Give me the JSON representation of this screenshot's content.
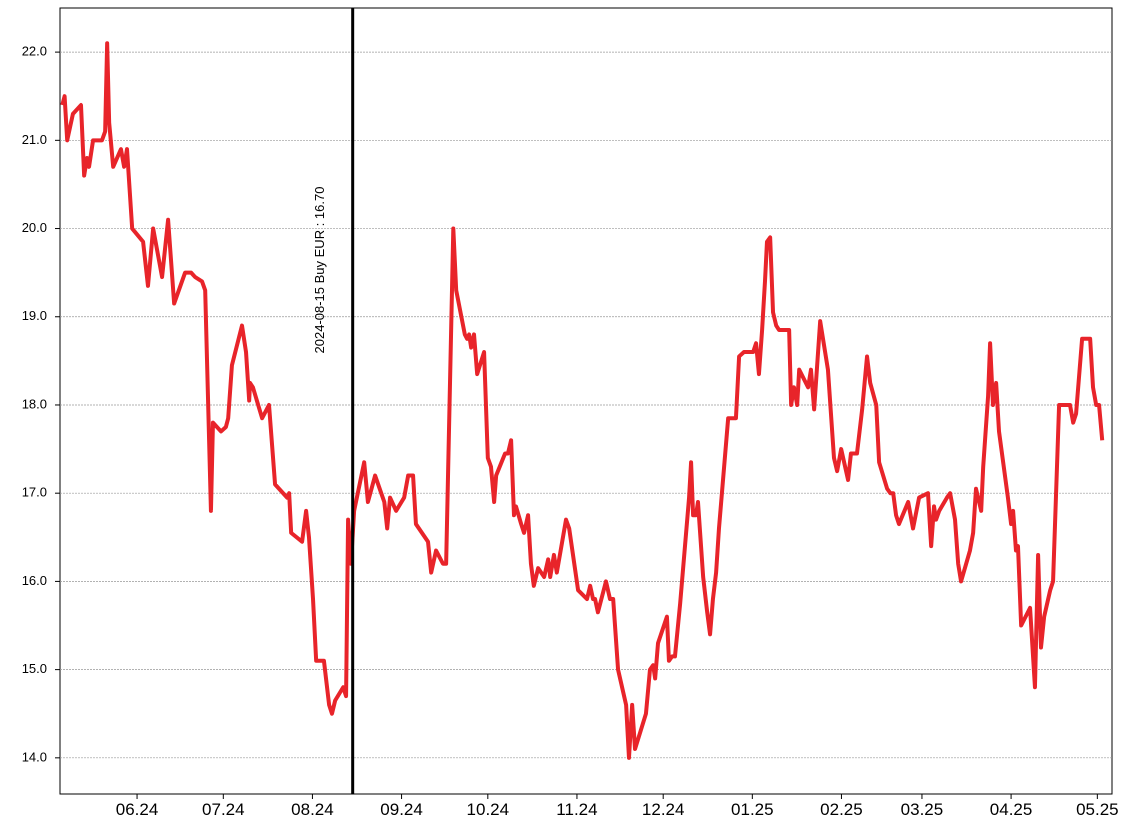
{
  "chart_data": {
    "type": "line",
    "x": [
      -26,
      -25.2,
      -24.3,
      -22.3,
      -19.5,
      -18.4,
      -17.4,
      -16.7,
      -15.3,
      -12.2,
      -11.1,
      -10.4,
      -9.7,
      -8.3,
      -5.6,
      -4.5,
      -3.5,
      -1.7,
      2.1,
      3.8,
      5.6,
      8.7,
      10.8,
      12.9,
      16.7,
      18.8,
      20.2,
      22.6,
      23.7,
      25.7,
      26.4,
      29.2,
      30.9,
      31.7,
      33,
      36.5,
      37.9,
      39,
      39.3,
      40.3,
      43.5,
      45.9,
      48,
      52.2,
      52.9,
      53.6,
      57.4,
      58.8,
      59.8,
      61.2,
      62.3,
      65,
      66.8,
      67.8,
      68.9,
      71.7,
      72.7,
      73.4,
      74.4,
      75.5,
      79,
      80.3,
      82.8,
      86,
      87,
      88,
      90.1,
      92.9,
      94.3,
      96,
      97,
      101.2,
      102.3,
      104,
      106.4,
      107.5,
      110,
      111,
      114,
      114.8,
      115.5,
      116.2,
      117.2,
      118.3,
      120.7,
      122,
      123.1,
      124.2,
      124.9,
      128,
      129,
      130.1,
      131.1,
      131.8,
      133.6,
      134.6,
      136,
      137,
      138,
      139.5,
      141.6,
      143,
      143.7,
      145,
      146,
      149.2,
      150.3,
      153.4,
      156.5,
      157.6,
      158.6,
      159.3,
      160.3,
      163.1,
      164.5,
      165.6,
      167.3,
      170.1,
      171.1,
      172.2,
      173.2,
      177,
      178.4,
      179.5,
      180.2,
      181.2,
      184.3,
      185,
      186.1,
      187.1,
      188.9,
      192,
      192.7,
      193.4,
      194.4,
      195.1,
      196.9,
      198.3,
      199.3,
      200.3,
      201.4,
      202.4,
      205.6,
      208.3,
      209.4,
      211.1,
      212.5,
      214.3,
      215.3,
      216.3,
      217.4,
      218.4,
      219.1,
      220.2,
      221.2,
      222.3,
      223.3,
      226.8,
      227.5,
      228.5,
      229.6,
      230.3,
      233.4,
      234.4,
      235.5,
      237.6,
      240.3,
      242.4,
      243.5,
      244.9,
      247.3,
      248.3,
      250.4,
      252.2,
      253.9,
      255,
      257.1,
      258.1,
      260.9,
      262,
      263,
      264,
      265,
      268.2,
      269.9,
      272,
      275.1,
      276.2,
      277.2,
      277.9,
      279,
      281.7,
      282.8,
      284.5,
      285.6,
      286.6,
      289.7,
      290.8,
      291.8,
      293.6,
      294.3,
      296,
      296.7,
      297.7,
      298.8,
      299.8,
      302.9,
      304,
      304.7,
      305.7,
      306.4,
      307.5,
      310.6,
      312.3,
      313.4,
      314.4,
      315.5,
      317.6,
      318.6,
      320.7,
      324.5,
      325.6,
      326.6,
      328.7,
      331.5,
      332.5,
      333.6,
      334.6,
      335.7
    ],
    "values": [
      21.4,
      21.5,
      21.0,
      21.3,
      21.4,
      20.6,
      20.8,
      20.7,
      21.0,
      21.0,
      21.1,
      22.1,
      21.2,
      20.7,
      20.9,
      20.7,
      20.9,
      20.0,
      19.85,
      19.35,
      20.0,
      19.45,
      20.1,
      19.15,
      19.5,
      19.5,
      19.45,
      19.4,
      19.3,
      16.8,
      17.8,
      17.7,
      17.75,
      17.85,
      18.45,
      18.9,
      18.6,
      18.05,
      18.25,
      18.2,
      17.85,
      18.0,
      17.1,
      16.95,
      17.0,
      16.55,
      16.45,
      16.8,
      16.5,
      15.8,
      15.1,
      15.1,
      14.6,
      14.5,
      14.65,
      14.8,
      14.7,
      16.7,
      16.2,
      16.8,
      17.35,
      16.9,
      17.2,
      16.9,
      16.6,
      16.95,
      16.8,
      16.95,
      17.2,
      17.2,
      16.65,
      16.45,
      16.1,
      16.35,
      16.2,
      16.2,
      20.0,
      19.3,
      18.8,
      18.75,
      18.8,
      18.65,
      18.8,
      18.35,
      18.6,
      17.4,
      17.3,
      16.9,
      17.2,
      17.45,
      17.45,
      17.6,
      16.75,
      16.85,
      16.65,
      16.55,
      16.75,
      16.2,
      15.95,
      16.15,
      16.05,
      16.25,
      16.05,
      16.3,
      16.1,
      16.7,
      16.6,
      15.9,
      15.8,
      15.95,
      15.8,
      15.8,
      15.65,
      16.0,
      15.8,
      15.8,
      15.0,
      14.6,
      14.0,
      14.6,
      14.1,
      14.5,
      15.0,
      15.05,
      14.9,
      15.3,
      15.6,
      15.1,
      15.15,
      15.15,
      15.75,
      16.95,
      17.35,
      16.75,
      16.75,
      16.9,
      16.05,
      15.65,
      15.4,
      15.8,
      16.1,
      16.6,
      17.85,
      17.85,
      18.55,
      18.6,
      18.6,
      18.6,
      18.7,
      18.35,
      18.85,
      19.4,
      19.85,
      19.9,
      19.05,
      18.9,
      18.85,
      18.85,
      18.0,
      18.2,
      18.0,
      18.4,
      18.2,
      18.4,
      17.95,
      18.95,
      18.4,
      17.4,
      17.25,
      17.5,
      17.15,
      17.45,
      17.45,
      17.95,
      18.55,
      18.25,
      18.0,
      17.35,
      17.05,
      17.0,
      17.0,
      16.75,
      16.65,
      16.9,
      16.6,
      16.95,
      17.0,
      16.4,
      16.85,
      16.7,
      16.8,
      16.95,
      17.0,
      16.7,
      16.2,
      16.0,
      16.35,
      16.55,
      17.05,
      16.8,
      17.3,
      18.1,
      18.7,
      18.0,
      18.25,
      17.7,
      16.95,
      16.65,
      16.8,
      16.35,
      16.4,
      15.5,
      15.7,
      14.8,
      16.3,
      15.25,
      15.6,
      15.9,
      16.0,
      18.0,
      18.0,
      17.8,
      17.9,
      18.75,
      18.75,
      18.2,
      18.0,
      18.0,
      17.6
    ],
    "color": "#e8242a",
    "xlim": [
      -26.8,
      339.1
    ],
    "xticks": [
      {
        "value": 0,
        "label": "06.24"
      },
      {
        "value": 30,
        "label": "07.24"
      },
      {
        "value": 61,
        "label": "08.24"
      },
      {
        "value": 92,
        "label": "09.24"
      },
      {
        "value": 122,
        "label": "10.24"
      },
      {
        "value": 153,
        "label": "11.24"
      },
      {
        "value": 183,
        "label": "12.24"
      },
      {
        "value": 214,
        "label": "01.25"
      },
      {
        "value": 245,
        "label": "02.25"
      },
      {
        "value": 273,
        "label": "03.25"
      },
      {
        "value": 304,
        "label": "04.25"
      },
      {
        "value": 334,
        "label": "05.25"
      }
    ],
    "ylim": [
      13.59,
      22.5
    ],
    "yticks": [
      {
        "value": 14,
        "label": "14.0"
      },
      {
        "value": 15,
        "label": "15.0"
      },
      {
        "value": 16,
        "label": "16.0"
      },
      {
        "value": 17,
        "label": "17.0"
      },
      {
        "value": 18,
        "label": "18.0"
      },
      {
        "value": 19,
        "label": "19.0"
      },
      {
        "value": 20,
        "label": "20.0"
      },
      {
        "value": 21,
        "label": "21.0"
      },
      {
        "value": 22,
        "label": "22.0"
      }
    ],
    "grid": true,
    "annotations": [
      {
        "x": 75,
        "text": "2024-08-15 Buy EUR : 16.70"
      }
    ]
  }
}
